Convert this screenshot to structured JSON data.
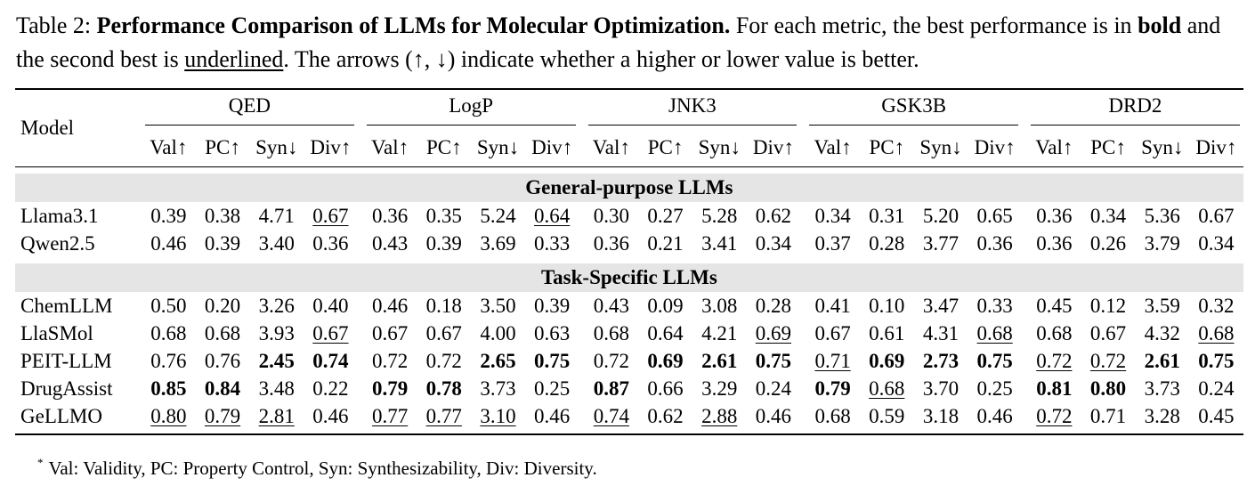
{
  "caption": {
    "label": "Table 2:",
    "title": "Performance Comparison of LLMs for Molecular Optimization.",
    "text1": "For each metric, the best performance is in",
    "bold_word": "bold",
    "text2": "and the second best is",
    "underlined_word": "underlined",
    "text3": ". The arrows (↑, ↓) indicate whether a higher or lower value is better."
  },
  "table": {
    "model_header": "Model",
    "groups": [
      "QED",
      "LogP",
      "JNK3",
      "GSK3B",
      "DRD2"
    ],
    "sub_headers": [
      "Val↑",
      "PC↑",
      "Syn↓",
      "Div↑"
    ],
    "sections": [
      {
        "title": "General-purpose LLMs",
        "rows": [
          {
            "model": "Llama3.1",
            "cells": [
              {
                "v": "0.39"
              },
              {
                "v": "0.38"
              },
              {
                "v": "4.71"
              },
              {
                "v": "0.67",
                "s": "ul"
              },
              {
                "v": "0.36"
              },
              {
                "v": "0.35"
              },
              {
                "v": "5.24"
              },
              {
                "v": "0.64",
                "s": "ul"
              },
              {
                "v": "0.30"
              },
              {
                "v": "0.27"
              },
              {
                "v": "5.28"
              },
              {
                "v": "0.62"
              },
              {
                "v": "0.34"
              },
              {
                "v": "0.31"
              },
              {
                "v": "5.20"
              },
              {
                "v": "0.65"
              },
              {
                "v": "0.36"
              },
              {
                "v": "0.34"
              },
              {
                "v": "5.36"
              },
              {
                "v": "0.67"
              }
            ]
          },
          {
            "model": "Qwen2.5",
            "cells": [
              {
                "v": "0.46"
              },
              {
                "v": "0.39"
              },
              {
                "v": "3.40"
              },
              {
                "v": "0.36"
              },
              {
                "v": "0.43"
              },
              {
                "v": "0.39"
              },
              {
                "v": "3.69"
              },
              {
                "v": "0.33"
              },
              {
                "v": "0.36"
              },
              {
                "v": "0.21"
              },
              {
                "v": "3.41"
              },
              {
                "v": "0.34"
              },
              {
                "v": "0.37"
              },
              {
                "v": "0.28"
              },
              {
                "v": "3.77"
              },
              {
                "v": "0.36"
              },
              {
                "v": "0.36"
              },
              {
                "v": "0.26"
              },
              {
                "v": "3.79"
              },
              {
                "v": "0.34"
              }
            ]
          }
        ]
      },
      {
        "title": "Task-Specific LLMs",
        "rows": [
          {
            "model": "ChemLLM",
            "cells": [
              {
                "v": "0.50"
              },
              {
                "v": "0.20"
              },
              {
                "v": "3.26"
              },
              {
                "v": "0.40"
              },
              {
                "v": "0.46"
              },
              {
                "v": "0.18"
              },
              {
                "v": "3.50"
              },
              {
                "v": "0.39"
              },
              {
                "v": "0.43"
              },
              {
                "v": "0.09"
              },
              {
                "v": "3.08"
              },
              {
                "v": "0.28"
              },
              {
                "v": "0.41"
              },
              {
                "v": "0.10"
              },
              {
                "v": "3.47"
              },
              {
                "v": "0.33"
              },
              {
                "v": "0.45"
              },
              {
                "v": "0.12"
              },
              {
                "v": "3.59"
              },
              {
                "v": "0.32"
              }
            ]
          },
          {
            "model": "LlaSMol",
            "cells": [
              {
                "v": "0.68"
              },
              {
                "v": "0.68"
              },
              {
                "v": "3.93"
              },
              {
                "v": "0.67",
                "s": "ul"
              },
              {
                "v": "0.67"
              },
              {
                "v": "0.67"
              },
              {
                "v": "4.00"
              },
              {
                "v": "0.63"
              },
              {
                "v": "0.68"
              },
              {
                "v": "0.64"
              },
              {
                "v": "4.21"
              },
              {
                "v": "0.69",
                "s": "ul"
              },
              {
                "v": "0.67"
              },
              {
                "v": "0.61"
              },
              {
                "v": "4.31"
              },
              {
                "v": "0.68",
                "s": "ul"
              },
              {
                "v": "0.68"
              },
              {
                "v": "0.67"
              },
              {
                "v": "4.32"
              },
              {
                "v": "0.68",
                "s": "ul"
              }
            ]
          },
          {
            "model": "PEIT-LLM",
            "cells": [
              {
                "v": "0.76"
              },
              {
                "v": "0.76"
              },
              {
                "v": "2.45",
                "s": "bold"
              },
              {
                "v": "0.74",
                "s": "bold"
              },
              {
                "v": "0.72"
              },
              {
                "v": "0.72"
              },
              {
                "v": "2.65",
                "s": "bold"
              },
              {
                "v": "0.75",
                "s": "bold"
              },
              {
                "v": "0.72"
              },
              {
                "v": "0.69",
                "s": "bold"
              },
              {
                "v": "2.61",
                "s": "bold"
              },
              {
                "v": "0.75",
                "s": "bold"
              },
              {
                "v": "0.71",
                "s": "ul"
              },
              {
                "v": "0.69",
                "s": "bold"
              },
              {
                "v": "2.73",
                "s": "bold"
              },
              {
                "v": "0.75",
                "s": "bold"
              },
              {
                "v": "0.72",
                "s": "ul"
              },
              {
                "v": "0.72",
                "s": "ul"
              },
              {
                "v": "2.61",
                "s": "bold"
              },
              {
                "v": "0.75",
                "s": "bold"
              }
            ]
          },
          {
            "model": "DrugAssist",
            "cells": [
              {
                "v": "0.85",
                "s": "bold"
              },
              {
                "v": "0.84",
                "s": "bold"
              },
              {
                "v": "3.48"
              },
              {
                "v": "0.22"
              },
              {
                "v": "0.79",
                "s": "bold"
              },
              {
                "v": "0.78",
                "s": "bold"
              },
              {
                "v": "3.73"
              },
              {
                "v": "0.25"
              },
              {
                "v": "0.87",
                "s": "bold"
              },
              {
                "v": "0.66"
              },
              {
                "v": "3.29"
              },
              {
                "v": "0.24"
              },
              {
                "v": "0.79",
                "s": "bold"
              },
              {
                "v": "0.68",
                "s": "ul"
              },
              {
                "v": "3.70"
              },
              {
                "v": "0.25"
              },
              {
                "v": "0.81",
                "s": "bold"
              },
              {
                "v": "0.80",
                "s": "bold"
              },
              {
                "v": "3.73"
              },
              {
                "v": "0.24"
              }
            ]
          },
          {
            "model": "GeLLMO",
            "cells": [
              {
                "v": "0.80",
                "s": "ul"
              },
              {
                "v": "0.79",
                "s": "ul"
              },
              {
                "v": "2.81",
                "s": "ul"
              },
              {
                "v": "0.46"
              },
              {
                "v": "0.77",
                "s": "ul"
              },
              {
                "v": "0.77",
                "s": "ul"
              },
              {
                "v": "3.10",
                "s": "ul"
              },
              {
                "v": "0.46"
              },
              {
                "v": "0.74",
                "s": "ul"
              },
              {
                "v": "0.62"
              },
              {
                "v": "2.88",
                "s": "ul"
              },
              {
                "v": "0.46"
              },
              {
                "v": "0.68"
              },
              {
                "v": "0.59"
              },
              {
                "v": "3.18"
              },
              {
                "v": "0.46"
              },
              {
                "v": "0.72",
                "s": "ul"
              },
              {
                "v": "0.71"
              },
              {
                "v": "3.28"
              },
              {
                "v": "0.45"
              }
            ]
          }
        ]
      }
    ]
  },
  "footnote": {
    "marker": "*",
    "text": "Val: Validity, PC: Property Control, Syn: Synthesizability, Div: Diversity."
  }
}
